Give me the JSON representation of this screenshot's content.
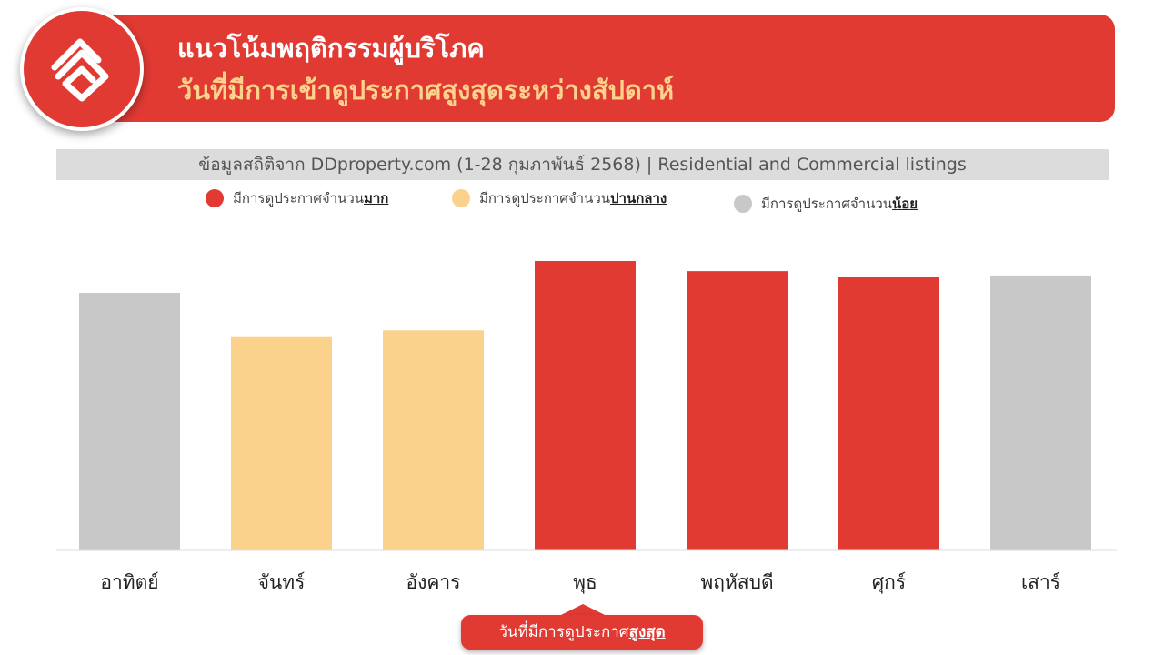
{
  "header": {
    "title_line1": "แนวโน้มพฤติกรรมผู้บริโภค",
    "title_line2": "วันที่มีการเข้าดูประกาศสูงสุดระหว่างสัปดาห์",
    "logo_icon": "house-roof-logo-icon"
  },
  "source_note": "ข้อมูลสถิติจาก DDproperty.com (1-28 กุมภาพันธ์ 2568) | Residential and Commercial listings",
  "legend": [
    {
      "prefix": "มีการดูประกาศจำนวน",
      "emphasis": "มาก",
      "color": "#e03a33"
    },
    {
      "prefix": "มีการดูประกาศจำนวน",
      "emphasis": "ปานกลาง",
      "color": "#fad28c"
    },
    {
      "prefix": "มีการดูประกาศจำนวน",
      "emphasis": "น้อย",
      "color": "#c8c8c8"
    }
  ],
  "chart_data": {
    "type": "bar",
    "categories": [
      "อาทิตย์",
      "จันทร์",
      "อังคาร",
      "พุธ",
      "พฤหัสบดี",
      "ศุกร์",
      "เสาร์"
    ],
    "values": [
      89,
      74,
      76,
      100,
      96.5,
      94.5,
      95
    ],
    "levels": [
      "low",
      "medium",
      "medium",
      "high",
      "high",
      "high",
      "low"
    ],
    "ylim": [
      0,
      100
    ],
    "grid": false,
    "legend_position": "top",
    "colors": {
      "high": "#e03a33",
      "medium": "#fad28c",
      "low": "#c8c8c8"
    }
  },
  "callout": {
    "prefix": "วันที่มีการดูประกาศ",
    "emphasis": "สูงสุด",
    "target_category": "พุธ"
  }
}
